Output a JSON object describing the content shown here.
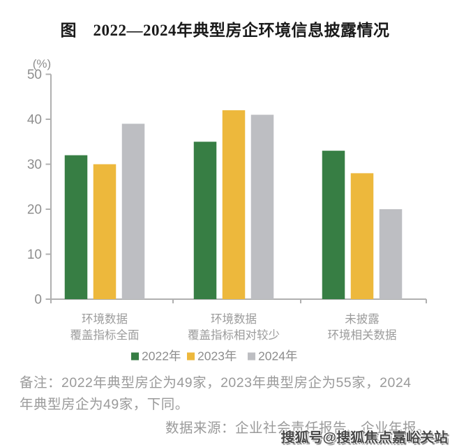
{
  "chart_data": {
    "type": "bar",
    "title": "图　2022—2024年典型房企环境信息披露情况",
    "unit_label": "(%)",
    "categories": [
      [
        "环境数据",
        "覆盖指标全面"
      ],
      [
        "环境数据",
        "覆盖指标相对较少"
      ],
      [
        "未披露",
        "环境相关数据"
      ]
    ],
    "series": [
      {
        "name": "2022年",
        "color": "#377E44",
        "values": [
          32,
          35,
          33
        ]
      },
      {
        "name": "2023年",
        "color": "#EDB83C",
        "values": [
          30,
          42,
          28
        ]
      },
      {
        "name": "2024年",
        "color": "#BDBEC2",
        "values": [
          39,
          41,
          20
        ]
      }
    ],
    "ylim": [
      0,
      50
    ],
    "yticks": [
      0,
      10,
      20,
      30,
      40,
      50
    ],
    "grid": false,
    "legend_position": "bottom"
  },
  "notes": {
    "remark_lines": [
      "备注：2022年典型房企为49家，2023年典型房企为55家，2024",
      "年典型房企为49家，下同。"
    ],
    "source": "数据来源：企业社会责任报告、企业年报。"
  },
  "watermark": "搜狐号@搜狐焦点嘉峪关站",
  "colors": {
    "axis_line": "#B0B0B0",
    "tick_label": "#8E8E8E",
    "category_label": "#9C9C9C",
    "legend_label": "#8D8D8D",
    "note_text": "#9A9A9A",
    "title_text": "#1A1A1A",
    "watermark_text": "#474747",
    "background": "#FFFFFF"
  }
}
